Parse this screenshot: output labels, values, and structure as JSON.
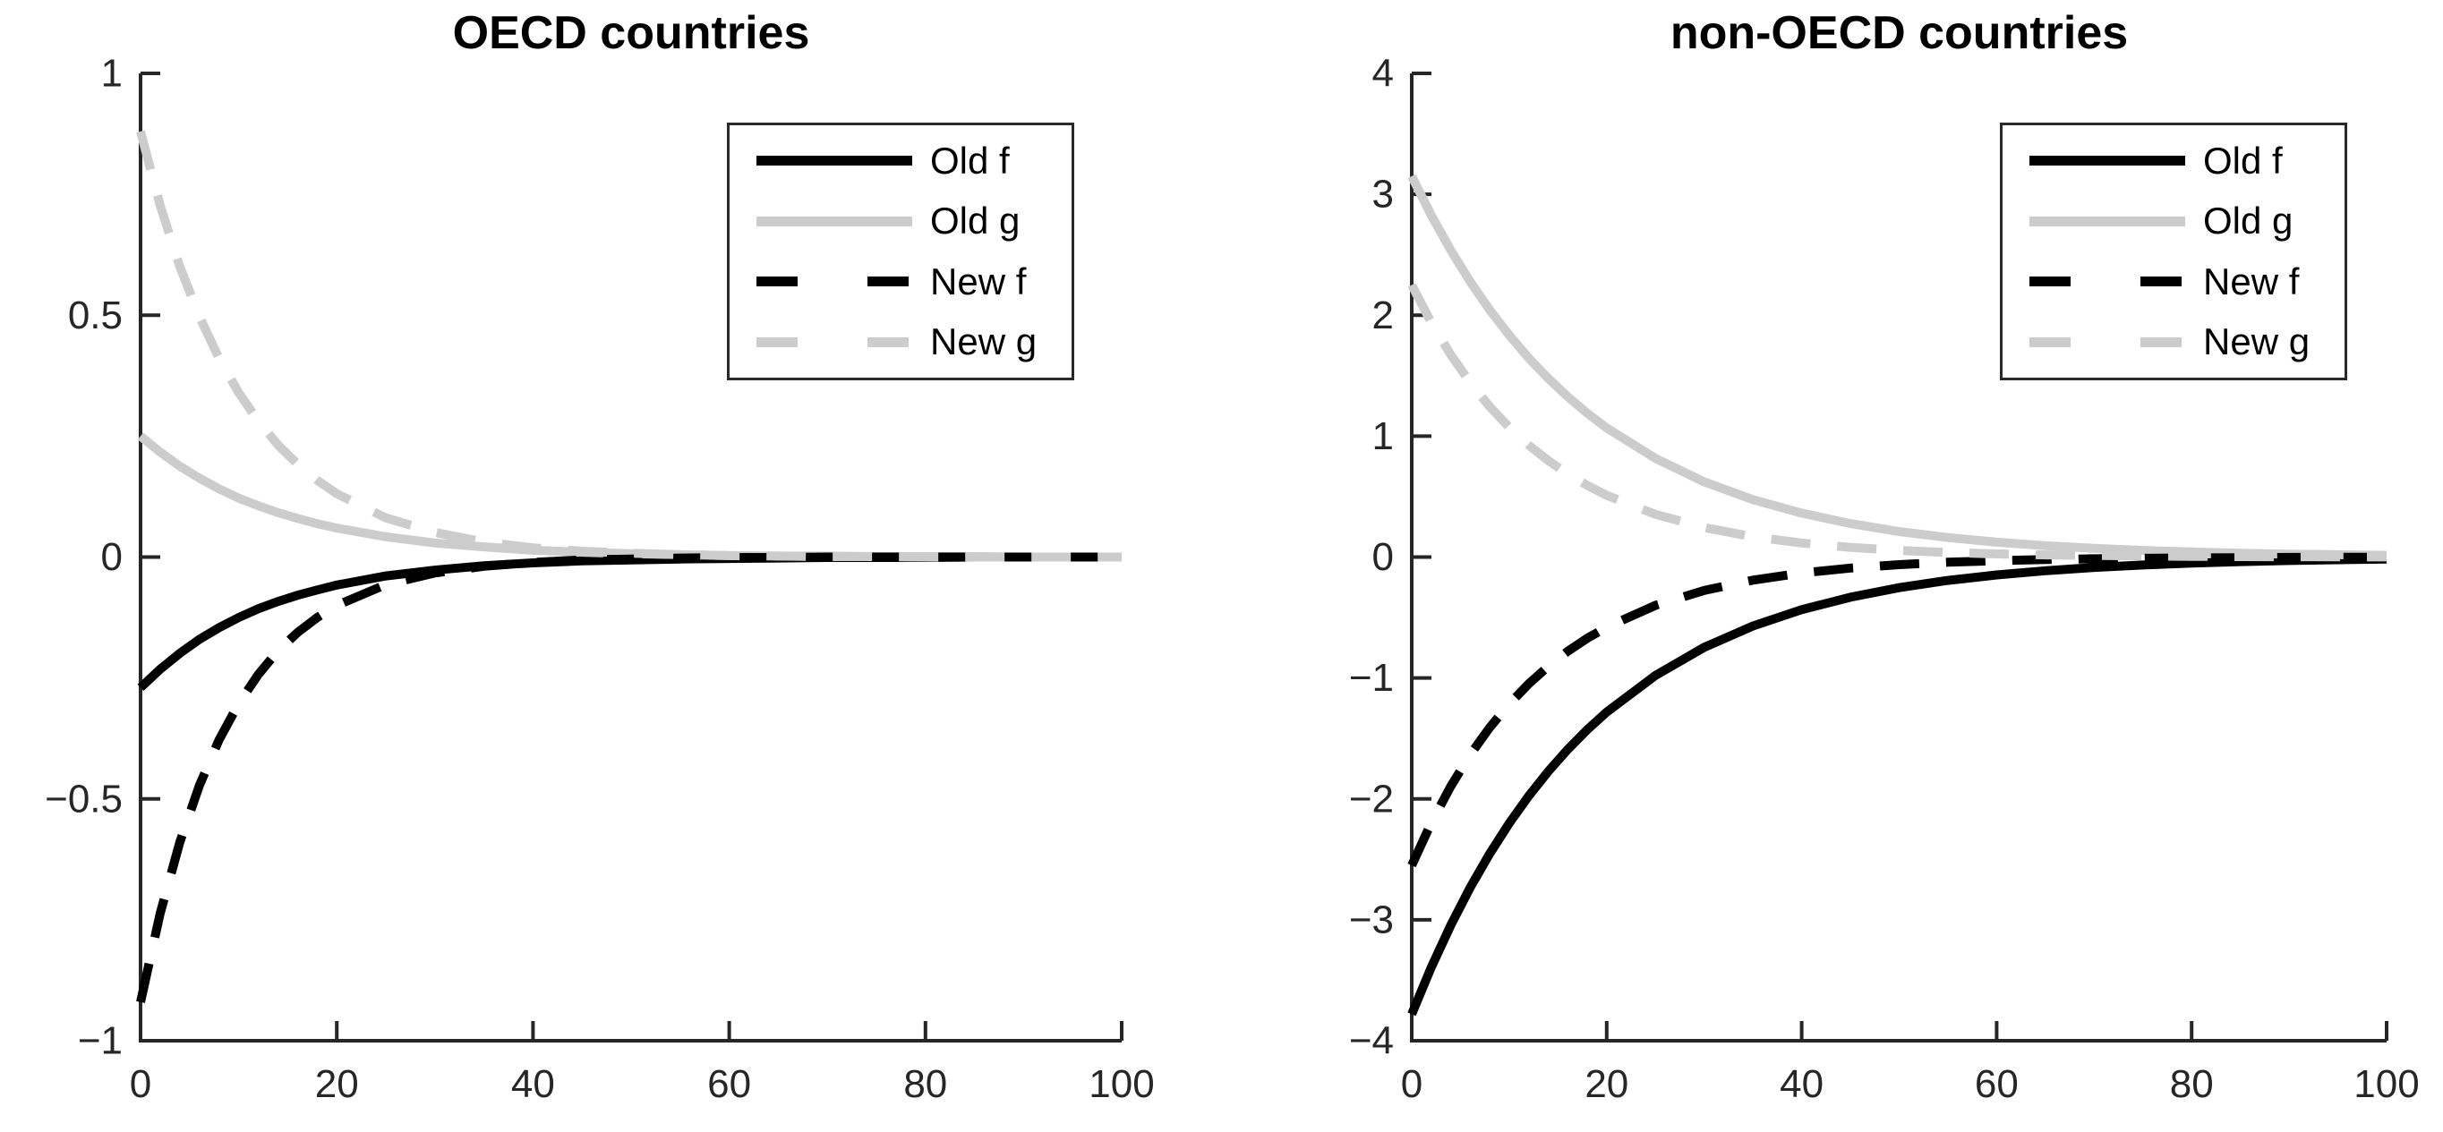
{
  "style": {
    "background": "#ffffff",
    "axis_color": "#262626",
    "black_line": "#000000",
    "gray_line": "#cccccc",
    "legend_border": "#2a2a2a"
  },
  "chart_data": [
    {
      "type": "line",
      "title": "OECD countries",
      "xlabel": "",
      "ylabel": "",
      "xlim": [
        0,
        100
      ],
      "ylim": [
        -1,
        1
      ],
      "grid": false,
      "legend_position": "upper-right-inside",
      "xticks": [
        0,
        20,
        40,
        60,
        80,
        100
      ],
      "xtick_labels": [
        "0",
        "20",
        "40",
        "60",
        "80",
        "100"
      ],
      "yticks": [
        -1,
        -0.5,
        0,
        0.5,
        1
      ],
      "ytick_labels": [
        "−1",
        "−0.5",
        "0",
        "0.5",
        "1"
      ],
      "x": [
        0,
        2,
        4,
        6,
        8,
        10,
        12,
        14,
        16,
        18,
        20,
        25,
        30,
        35,
        40,
        45,
        50,
        55,
        60,
        65,
        70,
        75,
        80,
        85,
        90,
        95,
        100
      ],
      "series": [
        {
          "name": "Old f",
          "color": "#000000",
          "style": "solid",
          "values": [
            -0.27,
            -0.232,
            -0.199,
            -0.17,
            -0.146,
            -0.125,
            -0.107,
            -0.092,
            -0.079,
            -0.068,
            -0.058,
            -0.039,
            -0.027,
            -0.018,
            -0.012,
            -0.008,
            -0.006,
            -0.004,
            -0.003,
            -0.002,
            -0.001,
            -0.001,
            -0.001,
            0.0,
            0.0,
            0.0,
            0.0
          ]
        },
        {
          "name": "Old g",
          "color": "#cccccc",
          "style": "solid",
          "values": [
            0.25,
            0.217,
            0.188,
            0.163,
            0.141,
            0.122,
            0.106,
            0.092,
            0.08,
            0.069,
            0.06,
            0.042,
            0.029,
            0.021,
            0.014,
            0.01,
            0.007,
            0.005,
            0.003,
            0.002,
            0.002,
            0.001,
            0.001,
            0.001,
            0.0,
            0.0,
            0.0
          ]
        },
        {
          "name": "New f",
          "color": "#000000",
          "style": "dashed",
          "values": [
            -0.92,
            -0.737,
            -0.59,
            -0.472,
            -0.378,
            -0.303,
            -0.243,
            -0.194,
            -0.156,
            -0.125,
            -0.1,
            -0.057,
            -0.033,
            -0.019,
            -0.011,
            -0.006,
            -0.004,
            -0.002,
            -0.001,
            -0.001,
            0.0,
            0.0,
            0.0,
            0.0,
            0.0,
            0.0,
            0.0
          ]
        },
        {
          "name": "New g",
          "color": "#cccccc",
          "style": "dashed",
          "values": [
            0.88,
            0.727,
            0.601,
            0.497,
            0.411,
            0.34,
            0.281,
            0.232,
            0.192,
            0.159,
            0.131,
            0.081,
            0.051,
            0.031,
            0.019,
            0.012,
            0.008,
            0.005,
            0.003,
            0.002,
            0.001,
            0.001,
            0.0,
            0.0,
            0.0,
            0.0,
            0.0
          ]
        }
      ]
    },
    {
      "type": "line",
      "title": "non-OECD countries",
      "xlabel": "",
      "ylabel": "",
      "xlim": [
        0,
        100
      ],
      "ylim": [
        -4,
        4
      ],
      "grid": false,
      "legend_position": "upper-right-inside",
      "xticks": [
        0,
        20,
        40,
        60,
        80,
        100
      ],
      "xtick_labels": [
        "0",
        "20",
        "40",
        "60",
        "80",
        "100"
      ],
      "yticks": [
        -4,
        -3,
        -2,
        -1,
        0,
        1,
        2,
        3,
        4
      ],
      "ytick_labels": [
        "−4",
        "−3",
        "−2",
        "−1",
        "0",
        "1",
        "2",
        "3",
        "4"
      ],
      "x": [
        0,
        2,
        4,
        6,
        8,
        10,
        12,
        14,
        16,
        18,
        20,
        25,
        30,
        35,
        40,
        45,
        50,
        55,
        60,
        65,
        70,
        75,
        80,
        85,
        90,
        95,
        100
      ],
      "series": [
        {
          "name": "Old f",
          "color": "#000000",
          "style": "solid",
          "values": [
            -3.78,
            -3.393,
            -3.045,
            -2.733,
            -2.453,
            -2.202,
            -1.976,
            -1.773,
            -1.592,
            -1.428,
            -1.282,
            -0.979,
            -0.747,
            -0.57,
            -0.435,
            -0.332,
            -0.253,
            -0.193,
            -0.148,
            -0.113,
            -0.086,
            -0.066,
            -0.05,
            -0.038,
            -0.029,
            -0.022,
            -0.017
          ]
        },
        {
          "name": "Old g",
          "color": "#cccccc",
          "style": "solid",
          "values": [
            3.15,
            2.827,
            2.538,
            2.278,
            2.044,
            1.835,
            1.646,
            1.478,
            1.326,
            1.19,
            1.068,
            0.816,
            0.622,
            0.475,
            0.363,
            0.277,
            0.211,
            0.161,
            0.123,
            0.094,
            0.072,
            0.055,
            0.042,
            0.032,
            0.024,
            0.019,
            0.014
          ]
        },
        {
          "name": "New f",
          "color": "#000000",
          "style": "dashed",
          "values": [
            -2.55,
            -2.199,
            -1.896,
            -1.635,
            -1.41,
            -1.216,
            -1.048,
            -0.904,
            -0.779,
            -0.672,
            -0.58,
            -0.4,
            -0.276,
            -0.191,
            -0.132,
            -0.091,
            -0.063,
            -0.043,
            -0.03,
            -0.021,
            -0.014,
            -0.01,
            -0.007,
            -0.005,
            -0.003,
            -0.002,
            -0.002
          ]
        },
        {
          "name": "New g",
          "color": "#cccccc",
          "style": "dashed",
          "values": [
            2.25,
            1.94,
            1.673,
            1.443,
            1.244,
            1.073,
            0.925,
            0.798,
            0.688,
            0.593,
            0.511,
            0.353,
            0.244,
            0.168,
            0.116,
            0.08,
            0.055,
            0.038,
            0.026,
            0.018,
            0.013,
            0.009,
            0.006,
            0.004,
            0.003,
            0.002,
            0.001
          ]
        }
      ]
    }
  ]
}
